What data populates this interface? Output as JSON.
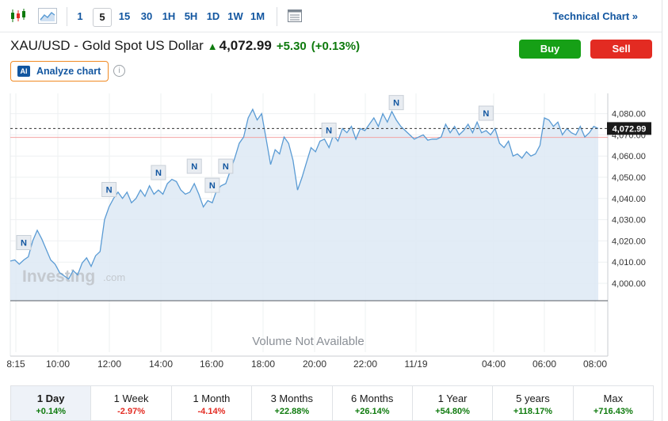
{
  "toolbar": {
    "timeframes": [
      "1",
      "5",
      "15",
      "30",
      "1H",
      "5H",
      "1D",
      "1W",
      "1M"
    ],
    "active_timeframe": "5",
    "technical_chart": "Technical Chart »"
  },
  "header": {
    "instrument": "XAU/USD - Gold Spot US Dollar",
    "price": "4,072.99",
    "change": "+5.30",
    "change_pct": "(+0.13%)",
    "buy_label": "Buy",
    "sell_label": "Sell",
    "analyze_label": "Analyze chart",
    "ai_badge": "AI"
  },
  "chart": {
    "watermark": "Investing",
    "watermark_suffix": ".com",
    "volume_note": "Volume Not Available",
    "price_tag": "4,072.99",
    "news_marker": "N"
  },
  "chart_data": {
    "type": "area",
    "title": "",
    "y_ticks": [
      "4,000.00",
      "4,010.00",
      "4,020.00",
      "4,030.00",
      "4,040.00",
      "4,050.00",
      "4,060.00",
      "4,070.00",
      "4,080.00"
    ],
    "x_ticks": [
      "8:15",
      "10:00",
      "12:00",
      "14:00",
      "16:00",
      "18:00",
      "20:00",
      "22:00",
      "11/19",
      "04:00",
      "06:00",
      "08:00"
    ],
    "ylim": [
      3992,
      4090
    ],
    "current_price": 4072.99,
    "reference_line": 4068.8,
    "series": [
      {
        "values": [
          4010.5,
          4011,
          4009,
          4011,
          4012.5,
          4020,
          4025,
          4021,
          4016,
          4011,
          4009,
          4005,
          4003.5,
          4002,
          4006,
          4004,
          4009.5,
          4012,
          4008,
          4013,
          4015,
          4030,
          4036,
          4040,
          4043,
          4040,
          4043,
          4038,
          4040,
          4044,
          4041,
          4046,
          4042,
          4044,
          4042,
          4047,
          4049,
          4048,
          4044,
          4042,
          4043,
          4047,
          4042,
          4036,
          4039,
          4038,
          4044,
          4046,
          4047,
          4053,
          4059,
          4066,
          4069,
          4078,
          4082,
          4077,
          4080,
          4068,
          4056,
          4063,
          4061,
          4069,
          4066,
          4058,
          4044,
          4050,
          4057,
          4064,
          4062,
          4067,
          4068,
          4064,
          4070,
          4067,
          4073,
          4071,
          4074,
          4068,
          4073,
          4072,
          4075,
          4078,
          4074,
          4080,
          4076,
          4081,
          4077,
          4074,
          4072,
          4070,
          4068,
          4069,
          4070,
          4067.5,
          4068,
          4068,
          4069,
          4075,
          4071,
          4074,
          4070,
          4072,
          4075,
          4071,
          4076,
          4071,
          4072,
          4070,
          4073,
          4066,
          4064,
          4067,
          4060,
          4061,
          4059,
          4062,
          4060,
          4061,
          4065,
          4078,
          4077,
          4074,
          4076,
          4070,
          4073,
          4071,
          4070,
          4074,
          4069,
          4071,
          4074,
          4073
        ]
      }
    ],
    "news_points": [
      3,
      22,
      33,
      41,
      45,
      48,
      71,
      86,
      106
    ]
  },
  "periods": [
    {
      "label": "1 Day",
      "value": "+0.14%",
      "dir": "pos"
    },
    {
      "label": "1 Week",
      "value": "-2.97%",
      "dir": "neg"
    },
    {
      "label": "1 Month",
      "value": "-4.14%",
      "dir": "neg"
    },
    {
      "label": "3 Months",
      "value": "+22.88%",
      "dir": "pos"
    },
    {
      "label": "6 Months",
      "value": "+26.14%",
      "dir": "pos"
    },
    {
      "label": "1 Year",
      "value": "+54.80%",
      "dir": "pos"
    },
    {
      "label": "5 years",
      "value": "+118.17%",
      "dir": "pos"
    },
    {
      "label": "Max",
      "value": "+716.43%",
      "dir": "pos"
    }
  ],
  "colors": {
    "line": "#5a9bd4",
    "area": "#dde9f5",
    "positive": "#0e7a0d",
    "negative": "#e32b22",
    "reference": "#f2a3a3",
    "link": "#1256a0"
  }
}
